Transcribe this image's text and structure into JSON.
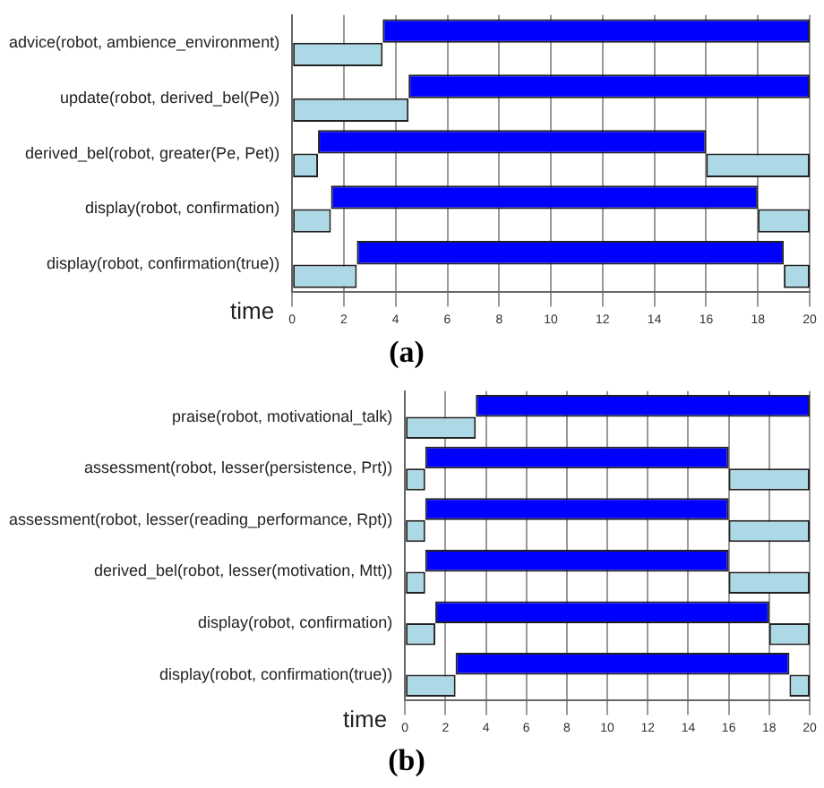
{
  "chart_data": [
    {
      "type": "bar",
      "orientation": "horizontal",
      "title": "(a)",
      "xlabel": "time",
      "categories": [
        "advice(robot, ambience_environment)",
        "update(robot, derived_bel(Pe))",
        "derived_bel(robot, greater(Pe, Pet))",
        "display(robot, confirmation)",
        "display(robot, confirmation(true))"
      ],
      "series": [
        {
          "color": "#0000ff",
          "base": [
            3.5,
            4.5,
            1,
            1.5,
            2.5
          ],
          "values": [
            16.5,
            15.5,
            15,
            16.5,
            16.5
          ]
        },
        {
          "color": "#add8e6",
          "base": [
            0,
            0,
            0,
            0,
            0
          ],
          "values": [
            3.5,
            4.5,
            1,
            1.5,
            2.5
          ]
        },
        {
          "color": "#add8e6",
          "base": [
            null,
            null,
            16,
            18,
            19
          ],
          "values": [
            null,
            null,
            4,
            2,
            1
          ]
        }
      ],
      "xlim": [
        0,
        20
      ],
      "xticks": [
        0,
        2,
        4,
        6,
        8,
        10,
        12,
        14,
        16,
        18,
        20
      ],
      "grid": "x",
      "legend": false
    },
    {
      "type": "bar",
      "orientation": "horizontal",
      "title": "(b)",
      "xlabel": "time",
      "categories": [
        "praise(robot, motivational_talk)",
        "assessment(robot, lesser(persistence, Prt))",
        "assessment(robot, lesser(reading_performance, Rpt))",
        "derived_bel(robot, lesser(motivation, Mtt))",
        "display(robot, confirmation)",
        "display(robot, confirmation(true))"
      ],
      "series": [
        {
          "color": "#0000ff",
          "base": [
            3.5,
            1,
            1,
            1,
            1.5,
            2.5
          ],
          "values": [
            16.5,
            15,
            15,
            15,
            16.5,
            16.5
          ]
        },
        {
          "color": "#add8e6",
          "base": [
            0,
            0,
            0,
            0,
            0,
            0
          ],
          "values": [
            3.5,
            1,
            1,
            1,
            1.5,
            2.5
          ]
        },
        {
          "color": "#add8e6",
          "base": [
            null,
            16,
            16,
            16,
            18,
            19
          ],
          "values": [
            null,
            4,
            4,
            4,
            2,
            1
          ]
        }
      ],
      "xlim": [
        0,
        20
      ],
      "xticks": [
        0,
        2,
        4,
        6,
        8,
        10,
        12,
        14,
        16,
        18,
        20
      ],
      "grid": "x",
      "legend": false
    }
  ]
}
